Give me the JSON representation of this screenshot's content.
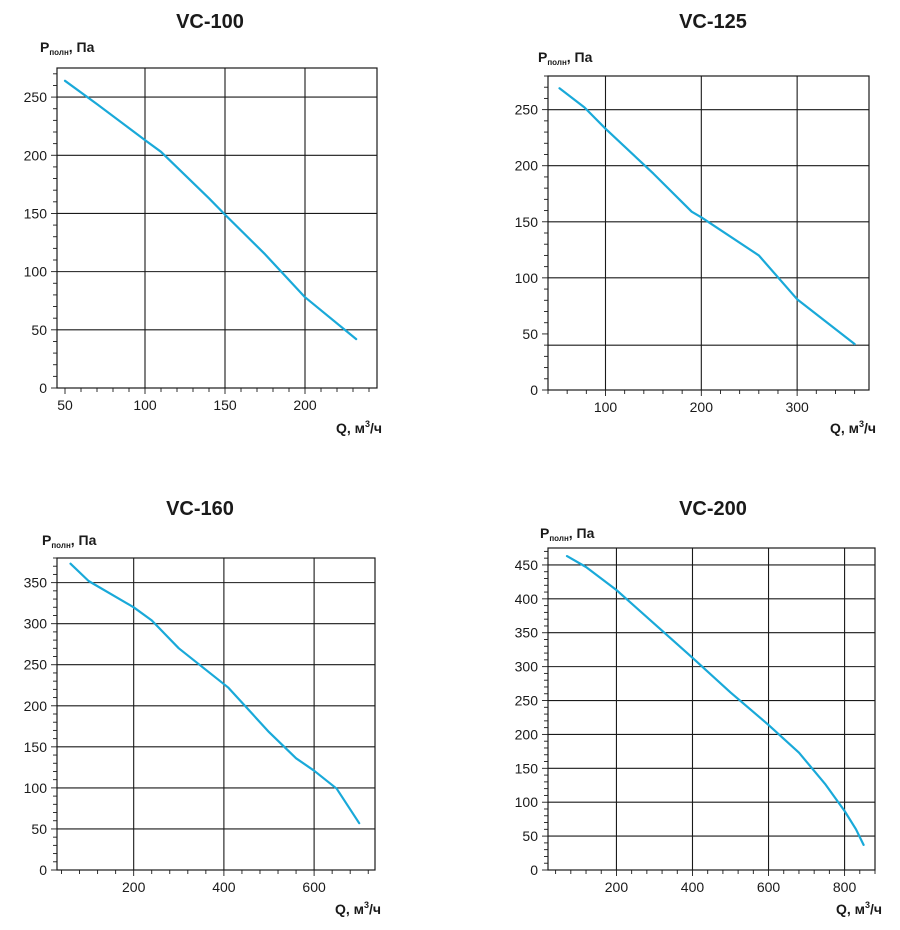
{
  "chart_data": [
    {
      "type": "line",
      "title": "VC-100",
      "ylabel": {
        "main": "P",
        "sub": "полн",
        "rest": ", Па"
      },
      "xlabel": {
        "main": "Q, м",
        "sup": "3",
        "rest": "/ч"
      },
      "xlim": [
        45,
        245
      ],
      "ylim": [
        0,
        275
      ],
      "x_ticks": [
        50,
        100,
        150,
        200
      ],
      "y_ticks": [
        0,
        50,
        100,
        150,
        200,
        250
      ],
      "x_grid": [
        100,
        150,
        200
      ],
      "y_grid": [
        50,
        100,
        150,
        200,
        250
      ],
      "grid": true,
      "series": [
        {
          "x": [
            50,
            70,
            100,
            110,
            140,
            150,
            175,
            200,
            232
          ],
          "y": [
            264,
            244,
            213,
            203,
            163,
            149,
            115,
            78,
            42
          ]
        }
      ]
    },
    {
      "type": "line",
      "title": "VC-125",
      "ylabel": {
        "main": "P",
        "sub": "полн",
        "rest": ", Па"
      },
      "xlabel": {
        "main": "Q, м",
        "sup": "3",
        "rest": "/ч"
      },
      "xlim": [
        40,
        375
      ],
      "ylim": [
        0,
        280
      ],
      "x_ticks": [
        100,
        200,
        300
      ],
      "y_ticks": [
        0,
        50,
        100,
        150,
        200,
        250
      ],
      "x_grid": [
        100,
        200,
        300
      ],
      "y_grid": [
        40,
        100,
        150,
        200,
        250
      ],
      "grid": true,
      "series": [
        {
          "x": [
            52,
            78,
            100,
            150,
            190,
            200,
            260,
            300,
            360
          ],
          "y": [
            269,
            252,
            233,
            193,
            159,
            154,
            120,
            81,
            41
          ]
        }
      ]
    },
    {
      "type": "line",
      "title": "VC-160",
      "ylabel": {
        "main": "P",
        "sub": "полн",
        "rest": ", Па"
      },
      "xlabel": {
        "main": "Q, м",
        "sup": "3",
        "rest": "/ч"
      },
      "xlim": [
        30,
        735
      ],
      "ylim": [
        0,
        380
      ],
      "x_ticks": [
        200,
        400,
        600
      ],
      "y_ticks": [
        0,
        50,
        100,
        150,
        200,
        250,
        300,
        350
      ],
      "x_grid": [
        200,
        400,
        600
      ],
      "y_grid": [
        50,
        100,
        150,
        200,
        250,
        300,
        350
      ],
      "grid": true,
      "series": [
        {
          "x": [
            60,
            100,
            200,
            240,
            300,
            410,
            500,
            560,
            600,
            650,
            700
          ],
          "y": [
            373,
            352,
            320,
            304,
            270,
            222,
            168,
            136,
            121,
            99,
            57
          ]
        }
      ]
    },
    {
      "type": "line",
      "title": "VC-200",
      "ylabel": {
        "main": "P",
        "sub": "полн",
        "rest": ", Па"
      },
      "xlabel": {
        "main": "Q, м",
        "sup": "3",
        "rest": "/ч"
      },
      "xlim": [
        20,
        880
      ],
      "ylim": [
        0,
        475
      ],
      "x_ticks": [
        200,
        400,
        600,
        800
      ],
      "y_ticks": [
        0,
        50,
        100,
        150,
        200,
        250,
        300,
        350,
        400,
        450
      ],
      "x_grid": [
        200,
        400,
        600,
        800
      ],
      "y_grid": [
        50,
        100,
        150,
        200,
        250,
        300,
        350,
        400,
        450
      ],
      "grid": true,
      "series": [
        {
          "x": [
            70,
            120,
            200,
            300,
            400,
            500,
            600,
            680,
            750,
            800,
            830,
            850
          ],
          "y": [
            463,
            447,
            413,
            363,
            313,
            262,
            214,
            173,
            126,
            87,
            60,
            37
          ]
        }
      ]
    }
  ]
}
